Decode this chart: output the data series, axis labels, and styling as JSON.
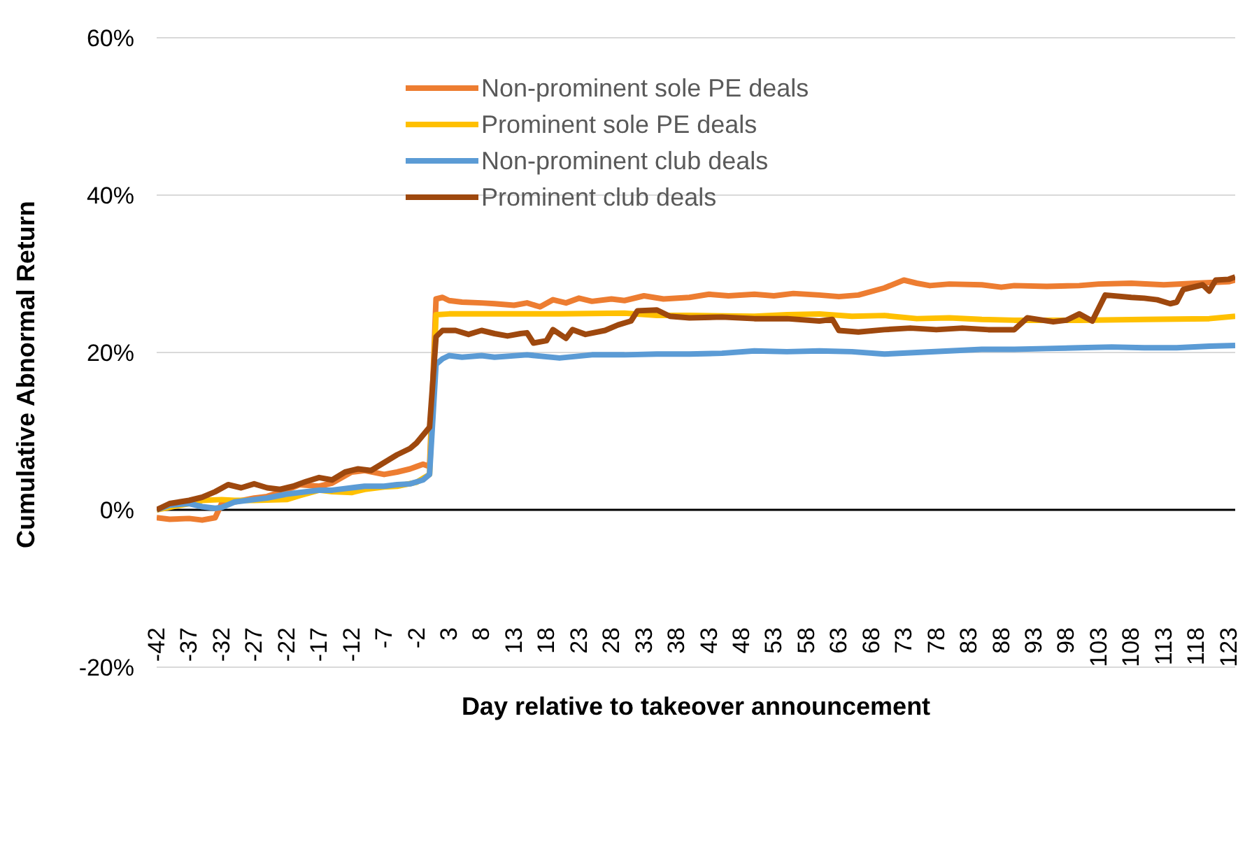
{
  "chart_data": {
    "type": "line",
    "xlabel": "Day relative to takeover announcement",
    "ylabel": "Cumulative Abnormal Return",
    "xlim": [
      -42,
      124
    ],
    "xticks": [
      -42,
      -37,
      -32,
      -27,
      -22,
      -17,
      -12,
      -7,
      -2,
      3,
      8,
      13,
      18,
      23,
      28,
      33,
      38,
      43,
      48,
      53,
      58,
      63,
      68,
      73,
      78,
      83,
      88,
      93,
      98,
      103,
      108,
      113,
      118,
      123
    ],
    "ylim": [
      -20,
      60
    ],
    "yticks": [
      {
        "value": -20,
        "label": "-20%"
      },
      {
        "value": 0,
        "label": "0%"
      },
      {
        "value": 20,
        "label": "20%"
      },
      {
        "value": 40,
        "label": "40%"
      },
      {
        "value": 60,
        "label": "60%"
      }
    ],
    "grid": "y",
    "legend": "top",
    "marker": "none",
    "line_style": "solid",
    "series": [
      {
        "name": "Non-prominent sole PE deals",
        "color": "#ed7d31",
        "x": [
          -42,
          -40,
          -37,
          -35,
          -33,
          -32,
          -30,
          -27,
          -25,
          -22,
          -20,
          -17,
          -15,
          -12,
          -10,
          -7,
          -5,
          -3,
          -2,
          -1,
          0,
          1,
          2,
          3,
          5,
          8,
          10,
          13,
          15,
          17,
          19,
          21,
          23,
          25,
          28,
          30,
          33,
          36,
          40,
          43,
          46,
          50,
          53,
          56,
          60,
          63,
          66,
          70,
          73,
          75,
          77,
          80,
          85,
          88,
          90,
          95,
          100,
          103,
          108,
          113,
          118,
          123,
          124
        ],
        "values": [
          -1,
          -1.2,
          -1.1,
          -1.3,
          -1,
          0.8,
          1,
          1.5,
          1.7,
          2.5,
          3.2,
          3,
          3.4,
          4.8,
          5,
          4.5,
          4.8,
          5.2,
          5.5,
          5.8,
          5.5,
          26.8,
          27,
          26.6,
          26.4,
          26.3,
          26.2,
          26,
          26.3,
          25.8,
          26.7,
          26.3,
          26.9,
          26.5,
          26.8,
          26.6,
          27.2,
          26.8,
          27,
          27.4,
          27.2,
          27.4,
          27.2,
          27.5,
          27.3,
          27.1,
          27.3,
          28.2,
          29.2,
          28.8,
          28.5,
          28.7,
          28.6,
          28.3,
          28.5,
          28.4,
          28.5,
          28.7,
          28.8,
          28.6,
          28.8,
          29,
          29.2
        ]
      },
      {
        "name": "Prominent sole PE deals",
        "color": "#ffc000",
        "x": [
          -42,
          -37,
          -35,
          -32,
          -30,
          -27,
          -22,
          -20,
          -17,
          -15,
          -12,
          -10,
          -7,
          -5,
          -2,
          -1,
          0,
          1,
          3,
          10,
          20,
          30,
          35,
          40,
          50,
          55,
          60,
          65,
          70,
          75,
          80,
          85,
          90,
          100,
          110,
          120,
          124
        ],
        "values": [
          0,
          0.8,
          1.2,
          1.3,
          1.2,
          1.2,
          1.3,
          1.8,
          2.5,
          2.3,
          2.2,
          2.6,
          2.9,
          3,
          3.5,
          4,
          4.5,
          24.8,
          24.9,
          24.9,
          24.9,
          25,
          24.7,
          24.7,
          24.6,
          24.8,
          24.9,
          24.6,
          24.7,
          24.3,
          24.4,
          24.2,
          24.1,
          24.1,
          24.2,
          24.3,
          24.6
        ]
      },
      {
        "name": "Non-prominent club deals",
        "color": "#5b9bd5",
        "x": [
          -42,
          -40,
          -37,
          -35,
          -33,
          -32,
          -30,
          -27,
          -25,
          -22,
          -20,
          -17,
          -15,
          -12,
          -10,
          -7,
          -5,
          -3,
          -1,
          0,
          1,
          2,
          3,
          5,
          8,
          10,
          15,
          20,
          25,
          30,
          35,
          40,
          45,
          50,
          55,
          60,
          65,
          70,
          75,
          80,
          85,
          90,
          95,
          100,
          105,
          110,
          115,
          120,
          124
        ],
        "values": [
          0,
          0.6,
          0.8,
          0.4,
          0.2,
          0.3,
          1,
          1.3,
          1.5,
          2,
          2.2,
          2.5,
          2.5,
          2.8,
          3,
          3,
          3.2,
          3.3,
          3.8,
          4.5,
          18.5,
          19.2,
          19.6,
          19.4,
          19.6,
          19.4,
          19.7,
          19.3,
          19.7,
          19.7,
          19.8,
          19.8,
          19.9,
          20.2,
          20.1,
          20.2,
          20.1,
          19.8,
          20,
          20.2,
          20.4,
          20.4,
          20.5,
          20.6,
          20.7,
          20.6,
          20.6,
          20.8,
          20.9
        ]
      },
      {
        "name": "Prominent club deals",
        "color": "#9e480e",
        "x": [
          -42,
          -40,
          -37,
          -35,
          -33,
          -31,
          -29,
          -27,
          -25,
          -23,
          -21,
          -19,
          -17,
          -15,
          -13,
          -11,
          -9,
          -7,
          -5,
          -3,
          -2,
          -1,
          0,
          1,
          2,
          4,
          6,
          8,
          10,
          12,
          14,
          15,
          16,
          18,
          19,
          21,
          22,
          24,
          27,
          29,
          31,
          32,
          35,
          37,
          40,
          45,
          50,
          55,
          60,
          62,
          63,
          66,
          70,
          74,
          78,
          82,
          86,
          90,
          92,
          96,
          98,
          100,
          102,
          104,
          108,
          110,
          112,
          114,
          115,
          116,
          118,
          119,
          120,
          121,
          123,
          124
        ],
        "values": [
          0,
          0.8,
          1.2,
          1.6,
          2.3,
          3.2,
          2.8,
          3.3,
          2.8,
          2.6,
          3,
          3.6,
          4.1,
          3.8,
          4.8,
          5.2,
          5,
          6,
          7,
          7.8,
          8.5,
          9.5,
          10.5,
          22,
          22.8,
          22.8,
          22.3,
          22.8,
          22.4,
          22.1,
          22.4,
          22.5,
          21.2,
          21.5,
          22.9,
          21.8,
          22.9,
          22.3,
          22.8,
          23.5,
          24,
          25.3,
          25.4,
          24.6,
          24.4,
          24.5,
          24.3,
          24.3,
          24,
          24.2,
          22.8,
          22.6,
          22.9,
          23.1,
          22.9,
          23.1,
          22.9,
          22.9,
          24.4,
          23.9,
          24.1,
          24.9,
          24,
          27.3,
          27,
          26.9,
          26.7,
          26.2,
          26.4,
          28,
          28.4,
          28.6,
          27.8,
          29.2,
          29.3,
          29.6
        ]
      }
    ]
  }
}
